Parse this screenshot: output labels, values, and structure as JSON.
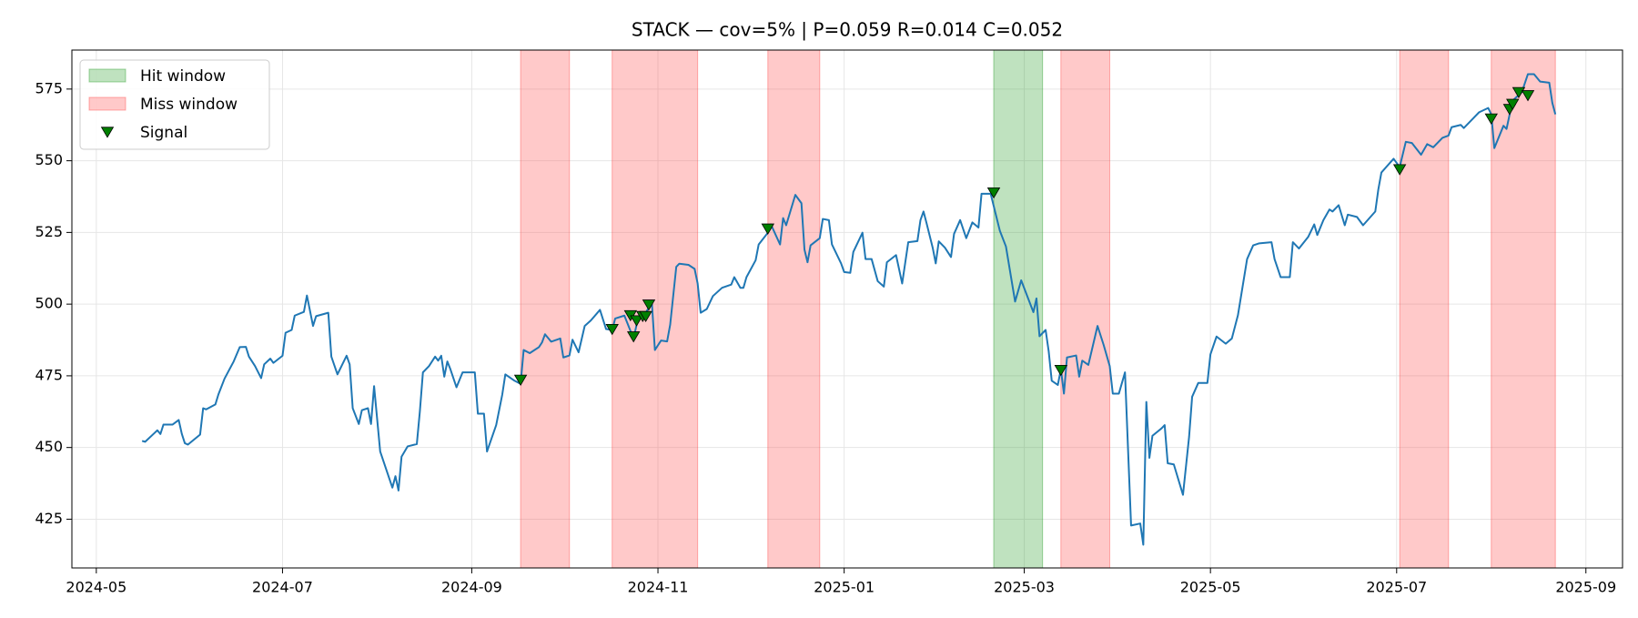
{
  "chart_data": {
    "type": "line",
    "title": "STACK — cov=5% | P=0.059 R=0.014 C=0.052",
    "color": "#1f77b4",
    "grid": true,
    "legend": "upper left",
    "xlim": [
      "2024-04-23",
      "2025-09-13"
    ],
    "xticks": [
      "2024-05",
      "2024-07",
      "2024-09",
      "2024-11",
      "2025-01",
      "2025-03",
      "2025-05",
      "2025-07",
      "2025-09"
    ],
    "ylim": [
      408,
      588.6
    ],
    "yticks": [
      425,
      450,
      475,
      500,
      525,
      550,
      575
    ],
    "x": [
      "2024-05-16",
      "2024-05-17",
      "2024-05-20",
      "2024-05-21",
      "2024-05-22",
      "2024-05-23",
      "2024-05-26",
      "2024-05-28",
      "2024-05-29",
      "2024-05-30",
      "2024-05-31",
      "2024-06-04",
      "2024-06-05",
      "2024-06-06",
      "2024-06-09",
      "2024-06-10",
      "2024-06-12",
      "2024-06-15",
      "2024-06-17",
      "2024-06-19",
      "2024-06-20",
      "2024-06-22",
      "2024-06-24",
      "2024-06-25",
      "2024-06-27",
      "2024-06-28",
      "2024-07-01",
      "2024-07-02",
      "2024-07-04",
      "2024-07-05",
      "2024-07-08",
      "2024-07-09",
      "2024-07-11",
      "2024-07-12",
      "2024-07-16",
      "2024-07-17",
      "2024-07-19",
      "2024-07-22",
      "2024-07-23",
      "2024-07-24",
      "2024-07-26",
      "2024-07-27",
      "2024-07-29",
      "2024-07-30",
      "2024-07-31",
      "2024-08-02",
      "2024-08-06",
      "2024-08-07",
      "2024-08-08",
      "2024-08-09",
      "2024-08-11",
      "2024-08-14",
      "2024-08-15",
      "2024-08-16",
      "2024-08-18",
      "2024-08-20",
      "2024-08-21",
      "2024-08-22",
      "2024-08-23",
      "2024-08-24",
      "2024-08-25",
      "2024-08-27",
      "2024-08-29",
      "2024-09-02",
      "2024-09-03",
      "2024-09-05",
      "2024-09-06",
      "2024-09-09",
      "2024-09-11",
      "2024-09-12",
      "2024-09-15",
      "2024-09-17",
      "2024-09-18",
      "2024-09-20",
      "2024-09-23",
      "2024-09-24",
      "2024-09-25",
      "2024-09-27",
      "2024-09-30",
      "2024-10-01",
      "2024-10-03",
      "2024-10-04",
      "2024-10-06",
      "2024-10-08",
      "2024-10-10",
      "2024-10-13",
      "2024-10-15",
      "2024-10-17",
      "2024-10-18",
      "2024-10-21",
      "2024-10-24",
      "2024-10-25",
      "2024-10-26",
      "2024-10-28",
      "2024-10-30",
      "2024-10-31",
      "2024-11-02",
      "2024-11-04",
      "2024-11-05",
      "2024-11-07",
      "2024-11-08",
      "2024-11-11",
      "2024-11-13",
      "2024-11-14",
      "2024-11-15",
      "2024-11-17",
      "2024-11-19",
      "2024-11-22",
      "2024-11-25",
      "2024-11-26",
      "2024-11-28",
      "2024-11-29",
      "2024-11-30",
      "2024-12-03",
      "2024-12-04",
      "2024-12-07",
      "2024-12-08",
      "2024-12-11",
      "2024-12-12",
      "2024-12-13",
      "2024-12-16",
      "2024-12-18",
      "2024-12-19",
      "2024-12-20",
      "2024-12-21",
      "2024-12-24",
      "2024-12-25",
      "2024-12-27",
      "2024-12-28",
      "2024-12-31",
      "2025-01-01",
      "2025-01-03",
      "2025-01-04",
      "2025-01-07",
      "2025-01-08",
      "2025-01-10",
      "2025-01-12",
      "2025-01-14",
      "2025-01-15",
      "2025-01-18",
      "2025-01-20",
      "2025-01-22",
      "2025-01-25",
      "2025-01-26",
      "2025-01-27",
      "2025-01-28",
      "2025-01-30",
      "2025-01-31",
      "2025-02-01",
      "2025-02-03",
      "2025-02-05",
      "2025-02-06",
      "2025-02-08",
      "2025-02-10",
      "2025-02-12",
      "2025-02-14",
      "2025-02-15",
      "2025-02-18",
      "2025-02-21",
      "2025-02-23",
      "2025-02-26",
      "2025-02-28",
      "2025-03-04",
      "2025-03-05",
      "2025-03-06",
      "2025-03-08",
      "2025-03-09",
      "2025-03-10",
      "2025-03-12",
      "2025-03-13",
      "2025-03-14",
      "2025-03-15",
      "2025-03-18",
      "2025-03-19",
      "2025-03-20",
      "2025-03-22",
      "2025-03-25",
      "2025-03-27",
      "2025-03-29",
      "2025-03-30",
      "2025-04-01",
      "2025-04-03",
      "2025-04-05",
      "2025-04-08",
      "2025-04-09",
      "2025-04-10",
      "2025-04-11",
      "2025-04-12",
      "2025-04-15",
      "2025-04-16",
      "2025-04-17",
      "2025-04-19",
      "2025-04-22",
      "2025-04-24",
      "2025-04-25",
      "2025-04-27",
      "2025-04-30",
      "2025-05-01",
      "2025-05-03",
      "2025-05-06",
      "2025-05-08",
      "2025-05-10",
      "2025-05-13",
      "2025-05-15",
      "2025-05-17",
      "2025-05-21",
      "2025-05-22",
      "2025-05-24",
      "2025-05-27",
      "2025-05-28",
      "2025-05-30",
      "2025-06-02",
      "2025-06-04",
      "2025-06-05",
      "2025-06-07",
      "2025-06-09",
      "2025-06-10",
      "2025-06-12",
      "2025-06-14",
      "2025-06-15",
      "2025-06-18",
      "2025-06-20",
      "2025-06-24",
      "2025-06-25",
      "2025-06-26",
      "2025-06-30",
      "2025-07-02",
      "2025-07-04",
      "2025-07-06",
      "2025-07-09",
      "2025-07-11",
      "2025-07-13",
      "2025-07-16",
      "2025-07-18",
      "2025-07-19",
      "2025-07-22",
      "2025-07-23",
      "2025-07-26",
      "2025-07-28",
      "2025-07-31",
      "2025-08-01",
      "2025-08-02",
      "2025-08-05",
      "2025-08-06",
      "2025-08-08",
      "2025-08-11",
      "2025-08-13",
      "2025-08-15",
      "2025-08-17",
      "2025-08-20",
      "2025-08-21",
      "2025-08-22"
    ],
    "values": [
      452.3,
      452,
      455,
      456,
      454.7,
      458,
      458,
      459.6,
      454.8,
      451.5,
      451,
      454.5,
      463.7,
      463.3,
      465,
      468.5,
      474,
      480,
      485,
      485.1,
      481.7,
      478.4,
      474.2,
      479,
      481,
      479.5,
      482,
      490,
      491,
      496,
      497.3,
      503,
      492.4,
      495.8,
      497,
      481.7,
      475.5,
      482,
      479,
      463.7,
      458.2,
      463,
      463.7,
      458.2,
      471.4,
      448.6,
      436,
      440,
      435,
      446.8,
      450.4,
      451.2,
      462.6,
      476.2,
      478.4,
      481.7,
      480.3,
      482,
      474.7,
      480,
      477.3,
      471,
      476.2,
      476.2,
      461.8,
      461.8,
      448.6,
      457.8,
      468.5,
      475.5,
      473.3,
      472.2,
      484,
      482.9,
      485,
      486.6,
      489.5,
      486.9,
      488,
      481.4,
      482.1,
      487.6,
      483.2,
      492.4,
      494.3,
      498,
      491.3,
      491,
      495,
      496,
      488,
      492.8,
      495.8,
      497,
      500.6,
      484,
      487.3,
      487,
      492.8,
      513,
      514.1,
      513.7,
      512.3,
      507.2,
      497,
      498.3,
      502.8,
      505.7,
      506.8,
      509.4,
      505.7,
      505.7,
      509.4,
      515.3,
      520.8,
      524.9,
      527.8,
      520.8,
      530,
      527.5,
      538.1,
      535.2,
      519,
      514.6,
      520.5,
      523,
      529.7,
      529.3,
      520.8,
      514.2,
      511.2,
      510.9,
      518.2,
      524.9,
      515.7,
      515.7,
      508,
      506.1,
      514.6,
      517.1,
      507.2,
      521.6,
      522,
      529.3,
      532.3,
      528.2,
      519.7,
      514.2,
      521.9,
      519.7,
      516.4,
      524.5,
      529.3,
      523,
      528.5,
      526.7,
      538.5,
      538.5,
      525.6,
      520.1,
      500.9,
      508.3,
      497.2,
      502,
      488.8,
      491,
      483.6,
      473.3,
      471.8,
      477.3,
      468.8,
      481.4,
      482.1,
      474.7,
      480.3,
      478.8,
      492.4,
      485.8,
      478.4,
      468.8,
      468.8,
      476.2,
      422.8,
      423.5,
      416.1,
      465.9,
      446.4,
      454.1,
      456.7,
      457.8,
      444.5,
      444.1,
      433.5,
      453.7,
      467.7,
      472.5,
      472.5,
      482.5,
      488.7,
      486.2,
      488,
      496.1,
      515.7,
      520.5,
      521.2,
      521.6,
      515.7,
      509.4,
      509.4,
      521.6,
      519.4,
      523.4,
      527.8,
      524.1,
      529.3,
      533,
      532.3,
      534.5,
      527.5,
      531.2,
      530.4,
      527.5,
      532.3,
      540,
      545.9,
      550.7,
      547.8,
      556.6,
      556.2,
      552.1,
      555.8,
      554.7,
      558,
      558.8,
      561.7,
      562.5,
      561.4,
      564.7,
      566.9,
      568.4,
      566.2,
      554.4,
      562.2,
      561.1,
      571,
      573.9,
      580.2,
      580.2,
      577.6,
      577.2,
      570.2,
      566.2
    ],
    "windows": [
      {
        "name": "Hit window",
        "color": "#2ca02c",
        "spans": [
          [
            "2025-02-19",
            "2025-03-07"
          ]
        ]
      },
      {
        "name": "Miss window",
        "color": "#ff4d4d",
        "spans": [
          [
            "2024-09-17",
            "2024-10-03"
          ],
          [
            "2024-10-17",
            "2024-11-14"
          ],
          [
            "2024-12-07",
            "2024-12-24"
          ],
          [
            "2025-03-13",
            "2025-03-29"
          ],
          [
            "2025-07-02",
            "2025-07-18"
          ],
          [
            "2025-08-01",
            "2025-08-22"
          ]
        ]
      }
    ],
    "signals": {
      "name": "Signal",
      "color": "#008000",
      "x": [
        "2024-09-17",
        "2024-10-17",
        "2024-10-23",
        "2024-10-24",
        "2024-10-25",
        "2024-10-27",
        "2024-10-28",
        "2024-10-29",
        "2024-12-07",
        "2025-02-19",
        "2025-03-13",
        "2025-07-02",
        "2025-08-01",
        "2025-08-07",
        "2025-08-08",
        "2025-08-10",
        "2025-08-13"
      ],
      "values": [
        473.6,
        491.3,
        496.1,
        488.7,
        494.3,
        495.8,
        495.8,
        499.8,
        526.3,
        538.9,
        477,
        547,
        564.7,
        568,
        569.8,
        573.9,
        572.8
      ]
    }
  }
}
